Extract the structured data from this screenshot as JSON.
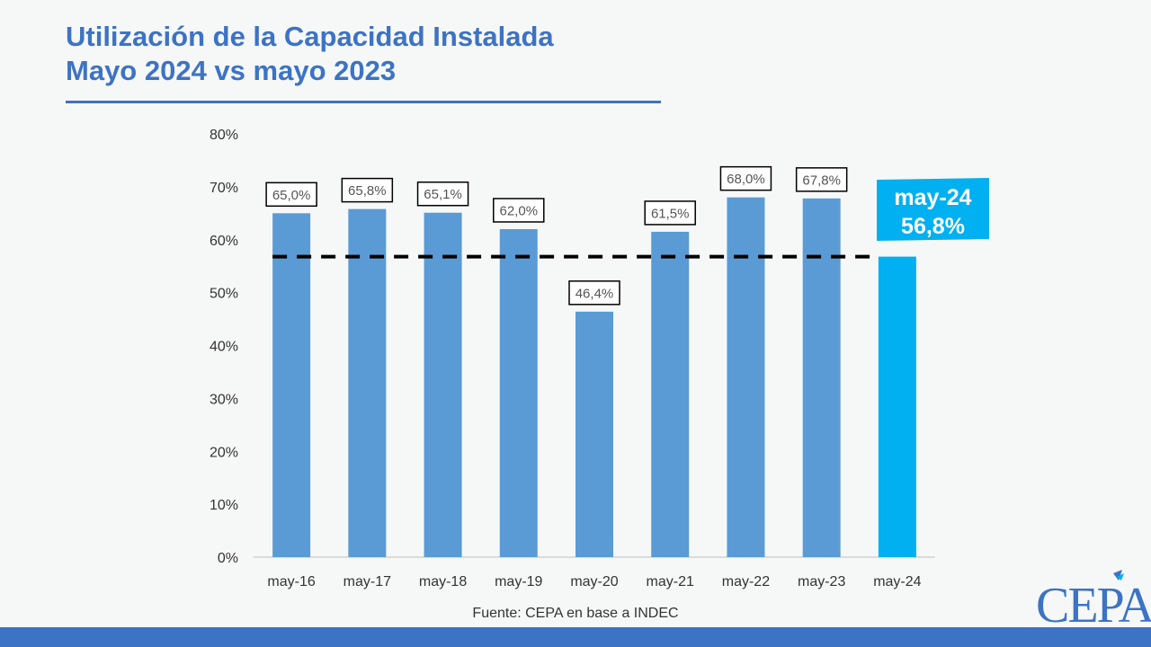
{
  "title_line1": "Utilización de la Capacidad Instalada",
  "title_line2": "Mayo 2024 vs mayo 2023",
  "source": "Fuente: CEPA en base a INDEC",
  "logo_text": "CEPA",
  "colors": {
    "accent": "#3d73c4",
    "bar": "#5b9bd5",
    "highlight": "#00b0f0",
    "reference_line": "#000000"
  },
  "chart_data": {
    "type": "bar",
    "categories": [
      "may-16",
      "may-17",
      "may-18",
      "may-19",
      "may-20",
      "may-21",
      "may-22",
      "may-23",
      "may-24"
    ],
    "values": [
      65.0,
      65.8,
      65.1,
      62.0,
      46.4,
      61.5,
      68.0,
      67.8,
      56.8
    ],
    "data_labels": [
      "65,0%",
      "65,8%",
      "65,1%",
      "62,0%",
      "46,4%",
      "61,5%",
      "68,0%",
      "67,8%",
      ""
    ],
    "y_ticks": [
      "0%",
      "10%",
      "20%",
      "30%",
      "40%",
      "50%",
      "60%",
      "70%",
      "80%"
    ],
    "ylim": [
      0,
      80
    ],
    "highlight": {
      "category": "may-24",
      "label_line1": "may-24",
      "label_line2": "56,8%"
    },
    "reference_line_value": 56.8,
    "grid": false,
    "xlabel": "",
    "ylabel": ""
  }
}
